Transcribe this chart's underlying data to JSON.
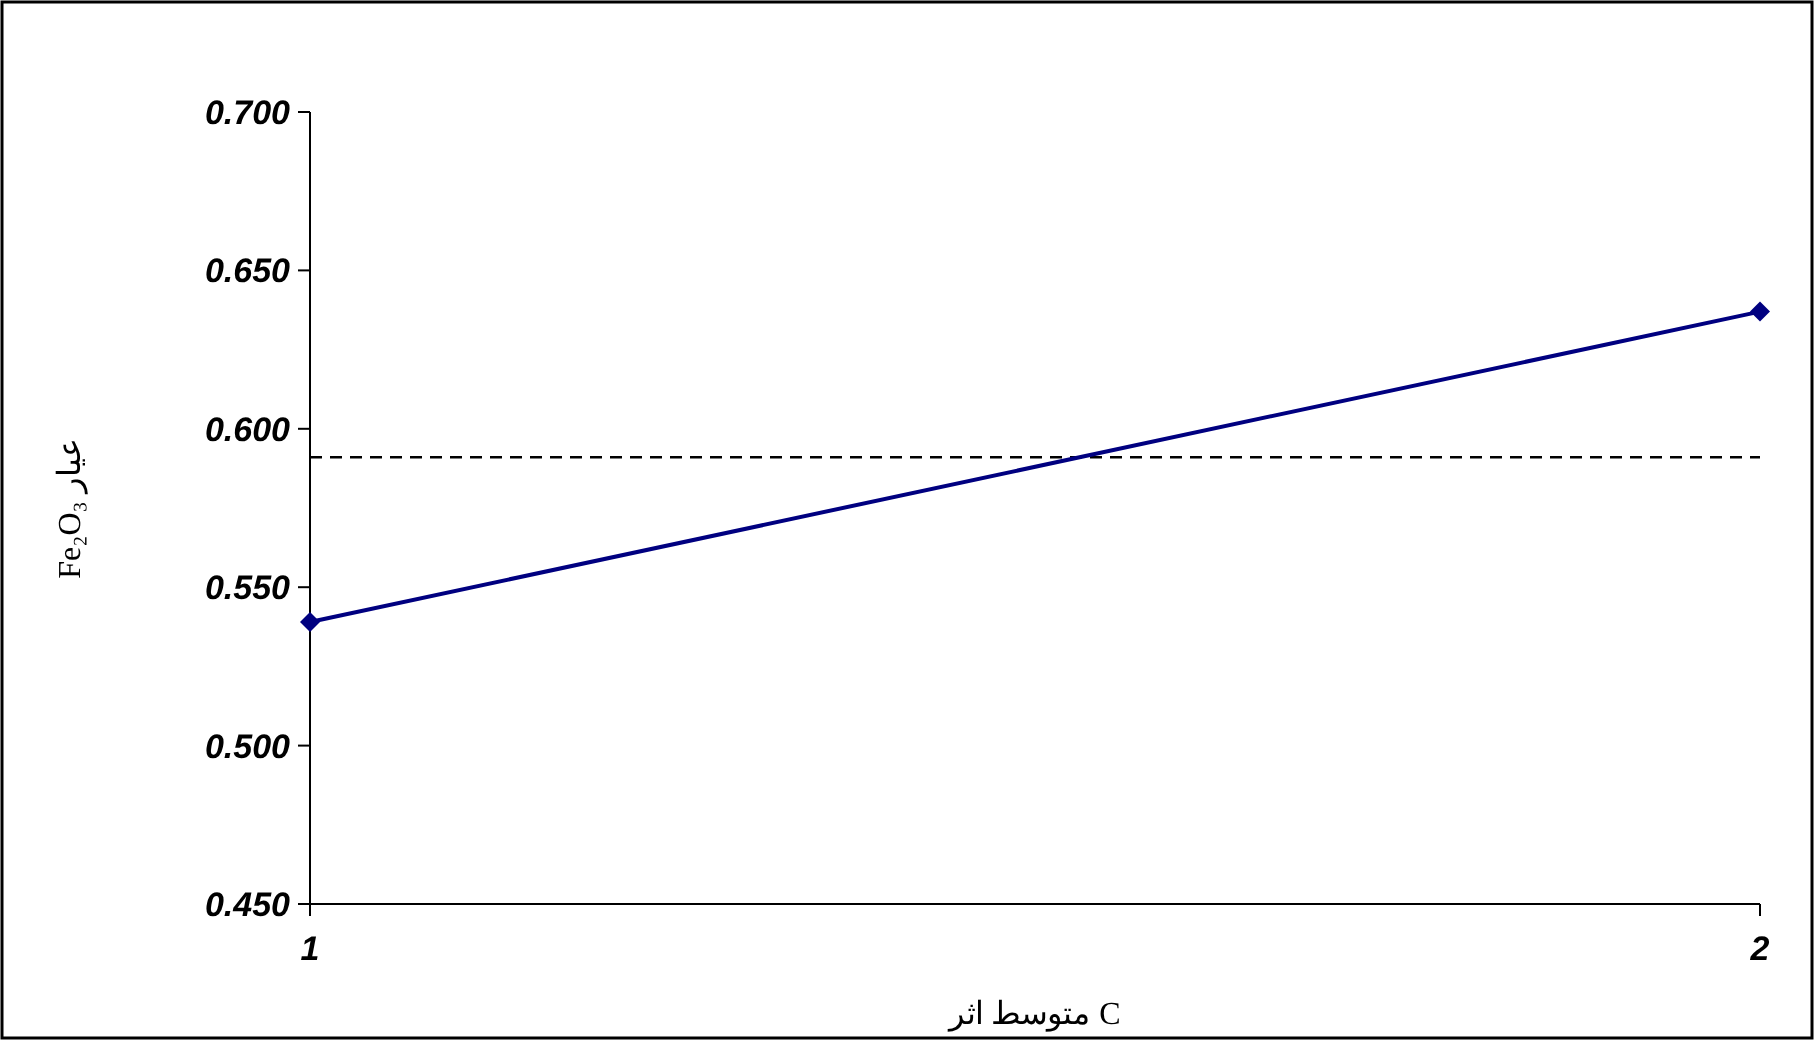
{
  "chart_data": {
    "type": "line",
    "xlabel": "متوسط اثر C",
    "ylabel": "Fe₂O₃ عيار",
    "categories": [
      "1",
      "2"
    ],
    "series": [
      {
        "color": "#000080",
        "values": [
          0.539,
          0.637
        ]
      }
    ],
    "ylim": [
      0.45,
      0.7
    ],
    "yticks": [
      {
        "value": 0.45,
        "label": "0.450"
      },
      {
        "value": 0.5,
        "label": "0.500"
      },
      {
        "value": 0.55,
        "label": "0.550"
      },
      {
        "value": 0.6,
        "label": "0.600"
      },
      {
        "value": 0.65,
        "label": "0.650"
      },
      {
        "value": 0.7,
        "label": "0.700"
      }
    ],
    "ref_lines": [
      {
        "axis": "y",
        "value": 0.591,
        "color": "#000000",
        "line_style": "dashed"
      }
    ],
    "marker": "diamond",
    "line_style": "solid",
    "grid": false
  }
}
